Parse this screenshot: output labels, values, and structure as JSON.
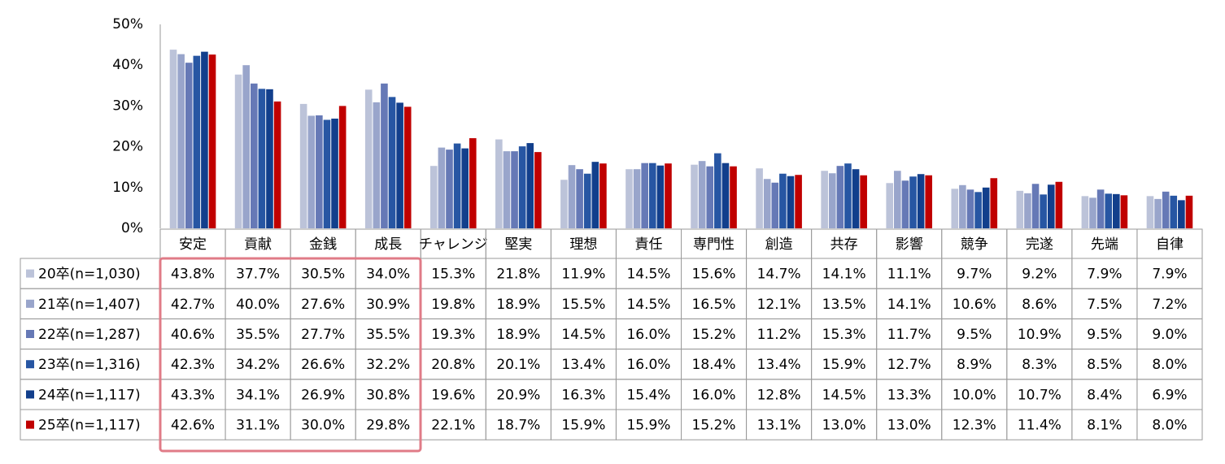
{
  "chart_data": {
    "type": "bar",
    "categories": [
      "安定",
      "貢献",
      "金銭",
      "成長",
      "チャレンジ",
      "堅実",
      "理想",
      "責任",
      "専門性",
      "創造",
      "共存",
      "影響",
      "競争",
      "完遂",
      "先端",
      "自律"
    ],
    "ylim": [
      0,
      50
    ],
    "yticks": [
      {
        "value": 0,
        "label": "0%"
      },
      {
        "value": 10,
        "label": "10%"
      },
      {
        "value": 20,
        "label": "20%"
      },
      {
        "value": 30,
        "label": "30%"
      },
      {
        "value": 40,
        "label": "40%"
      },
      {
        "value": 50,
        "label": "50%"
      }
    ],
    "series": [
      {
        "name": "20卒(n=1,030)",
        "color": "#bcc3d9",
        "values": [
          43.8,
          37.7,
          30.5,
          34.0,
          15.3,
          21.8,
          11.9,
          14.5,
          15.6,
          14.7,
          14.1,
          11.1,
          9.7,
          9.2,
          7.9,
          7.9
        ],
        "value_labels": [
          "43.8%",
          "37.7%",
          "30.5%",
          "34.0%",
          "15.3%",
          "21.8%",
          "11.9%",
          "14.5%",
          "15.6%",
          "14.7%",
          "14.1%",
          "11.1%",
          "9.7%",
          "9.2%",
          "7.9%",
          "7.9%"
        ]
      },
      {
        "name": "21卒(n=1,407)",
        "color": "#99a5cb",
        "values": [
          42.7,
          40.0,
          27.6,
          30.9,
          19.8,
          18.9,
          15.5,
          14.5,
          16.5,
          12.1,
          13.5,
          14.1,
          10.6,
          8.6,
          7.5,
          7.2
        ],
        "value_labels": [
          "42.7%",
          "40.0%",
          "27.6%",
          "30.9%",
          "19.8%",
          "18.9%",
          "15.5%",
          "14.5%",
          "16.5%",
          "12.1%",
          "13.5%",
          "14.1%",
          "10.6%",
          "8.6%",
          "7.5%",
          "7.2%"
        ]
      },
      {
        "name": "22卒(n=1,287)",
        "color": "#6679b6",
        "values": [
          40.6,
          35.5,
          27.7,
          35.5,
          19.3,
          18.9,
          14.5,
          16.0,
          15.2,
          11.2,
          15.3,
          11.7,
          9.5,
          10.9,
          9.5,
          9.0
        ],
        "value_labels": [
          "40.6%",
          "35.5%",
          "27.7%",
          "35.5%",
          "19.3%",
          "18.9%",
          "14.5%",
          "16.0%",
          "15.2%",
          "11.2%",
          "15.3%",
          "11.7%",
          "9.5%",
          "10.9%",
          "9.5%",
          "9.0%"
        ]
      },
      {
        "name": "23卒(n=1,316)",
        "color": "#2756a3",
        "values": [
          42.3,
          34.2,
          26.6,
          32.2,
          20.8,
          20.1,
          13.4,
          16.0,
          18.4,
          13.4,
          15.9,
          12.7,
          8.9,
          8.3,
          8.5,
          8.0
        ],
        "value_labels": [
          "42.3%",
          "34.2%",
          "26.6%",
          "32.2%",
          "20.8%",
          "20.1%",
          "13.4%",
          "16.0%",
          "18.4%",
          "13.4%",
          "15.9%",
          "12.7%",
          "8.9%",
          "8.3%",
          "8.5%",
          "8.0%"
        ]
      },
      {
        "name": "24卒(n=1,117)",
        "color": "#123f8c",
        "values": [
          43.3,
          34.1,
          26.9,
          30.8,
          19.6,
          20.9,
          16.3,
          15.4,
          16.0,
          12.8,
          14.5,
          13.3,
          10.0,
          10.7,
          8.4,
          6.9
        ],
        "value_labels": [
          "43.3%",
          "34.1%",
          "26.9%",
          "30.8%",
          "19.6%",
          "20.9%",
          "16.3%",
          "15.4%",
          "16.0%",
          "12.8%",
          "14.5%",
          "13.3%",
          "10.0%",
          "10.7%",
          "8.4%",
          "6.9%"
        ]
      },
      {
        "name": "25卒(n=1,117)",
        "color": "#c00000",
        "values": [
          42.6,
          31.1,
          30.0,
          29.8,
          22.1,
          18.7,
          15.9,
          15.9,
          15.2,
          13.1,
          13.0,
          13.0,
          12.3,
          11.4,
          8.1,
          8.0
        ],
        "value_labels": [
          "42.6%",
          "31.1%",
          "30.0%",
          "29.8%",
          "22.1%",
          "18.7%",
          "15.9%",
          "15.9%",
          "15.2%",
          "13.1%",
          "13.0%",
          "13.0%",
          "12.3%",
          "11.4%",
          "8.1%",
          "8.0%"
        ]
      }
    ]
  }
}
